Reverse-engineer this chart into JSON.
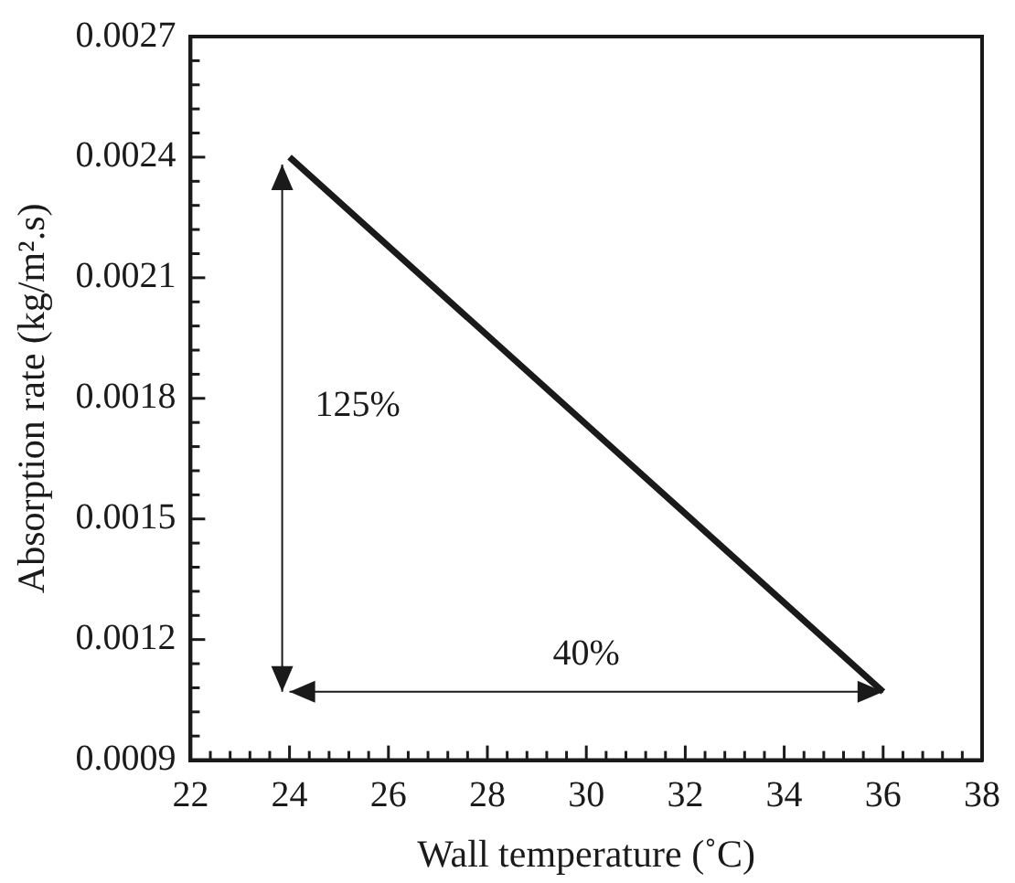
{
  "chart_data": {
    "type": "line",
    "xlabel": "Wall temperature (˚C)",
    "ylabel": "Absorption rate (kg/m².s)",
    "x": [
      24,
      36
    ],
    "series": [
      {
        "color": "#1a1a1a",
        "values": [
          0.0024,
          0.00107
        ]
      }
    ],
    "xlim": [
      22,
      38
    ],
    "xticks": [
      22,
      {
        "value": 22.4,
        "label": null
      },
      {
        "value": 22.8,
        "label": null
      },
      {
        "value": 23.2,
        "label": null
      },
      {
        "value": 23.6,
        "label": null
      },
      24,
      {
        "value": 24.4,
        "label": null
      },
      {
        "value": 24.8,
        "label": null
      },
      {
        "value": 25.2,
        "label": null
      },
      {
        "value": 25.6,
        "label": null
      },
      26,
      {
        "value": 26.4,
        "label": null
      },
      {
        "value": 26.8,
        "label": null
      },
      {
        "value": 27.2,
        "label": null
      },
      {
        "value": 27.6,
        "label": null
      },
      28,
      {
        "value": 28.4,
        "label": null
      },
      {
        "value": 28.8,
        "label": null
      },
      {
        "value": 29.2,
        "label": null
      },
      {
        "value": 29.6,
        "label": null
      },
      30,
      {
        "value": 30.4,
        "label": null
      },
      {
        "value": 30.8,
        "label": null
      },
      {
        "value": 31.2,
        "label": null
      },
      {
        "value": 31.6,
        "label": null
      },
      32,
      {
        "value": 32.4,
        "label": null
      },
      {
        "value": 32.8,
        "label": null
      },
      {
        "value": 33.2,
        "label": null
      },
      {
        "value": 33.6,
        "label": null
      },
      34,
      {
        "value": 34.4,
        "label": null
      },
      {
        "value": 34.8,
        "label": null
      },
      {
        "value": 35.2,
        "label": null
      },
      {
        "value": 35.6,
        "label": null
      },
      36,
      {
        "value": 36.4,
        "label": null
      },
      {
        "value": 36.8,
        "label": null
      },
      {
        "value": 37.2,
        "label": null
      },
      {
        "value": 37.6,
        "label": null
      },
      38
    ],
    "ylim": [
      0.0009,
      0.0027
    ],
    "yticks": [
      0.0009,
      {
        "value": 0.00096,
        "label": null
      },
      {
        "value": 0.00102,
        "label": null
      },
      {
        "value": 0.00108,
        "label": null
      },
      {
        "value": 0.00114,
        "label": null
      },
      0.0012,
      {
        "value": 0.00126,
        "label": null
      },
      {
        "value": 0.00132,
        "label": null
      },
      {
        "value": 0.00138,
        "label": null
      },
      {
        "value": 0.00144,
        "label": null
      },
      0.0015,
      {
        "value": 0.00156,
        "label": null
      },
      {
        "value": 0.00162,
        "label": null
      },
      {
        "value": 0.00168,
        "label": null
      },
      {
        "value": 0.00174,
        "label": null
      },
      0.0018,
      {
        "value": 0.00186,
        "label": null
      },
      {
        "value": 0.00192,
        "label": null
      },
      {
        "value": 0.00198,
        "label": null
      },
      {
        "value": 0.00204,
        "label": null
      },
      0.0021,
      {
        "value": 0.00216,
        "label": null
      },
      {
        "value": 0.00222,
        "label": null
      },
      {
        "value": 0.00228,
        "label": null
      },
      {
        "value": 0.00234,
        "label": null
      },
      0.0024,
      {
        "value": 0.00246,
        "label": null
      },
      {
        "value": 0.00252,
        "label": null
      },
      {
        "value": 0.00258,
        "label": null
      },
      {
        "value": 0.00264,
        "label": null
      },
      0.0027
    ],
    "annotations": [
      "125%",
      "40%"
    ],
    "grid": false,
    "legend": false,
    "marker": "none",
    "line_style": "solid"
  }
}
